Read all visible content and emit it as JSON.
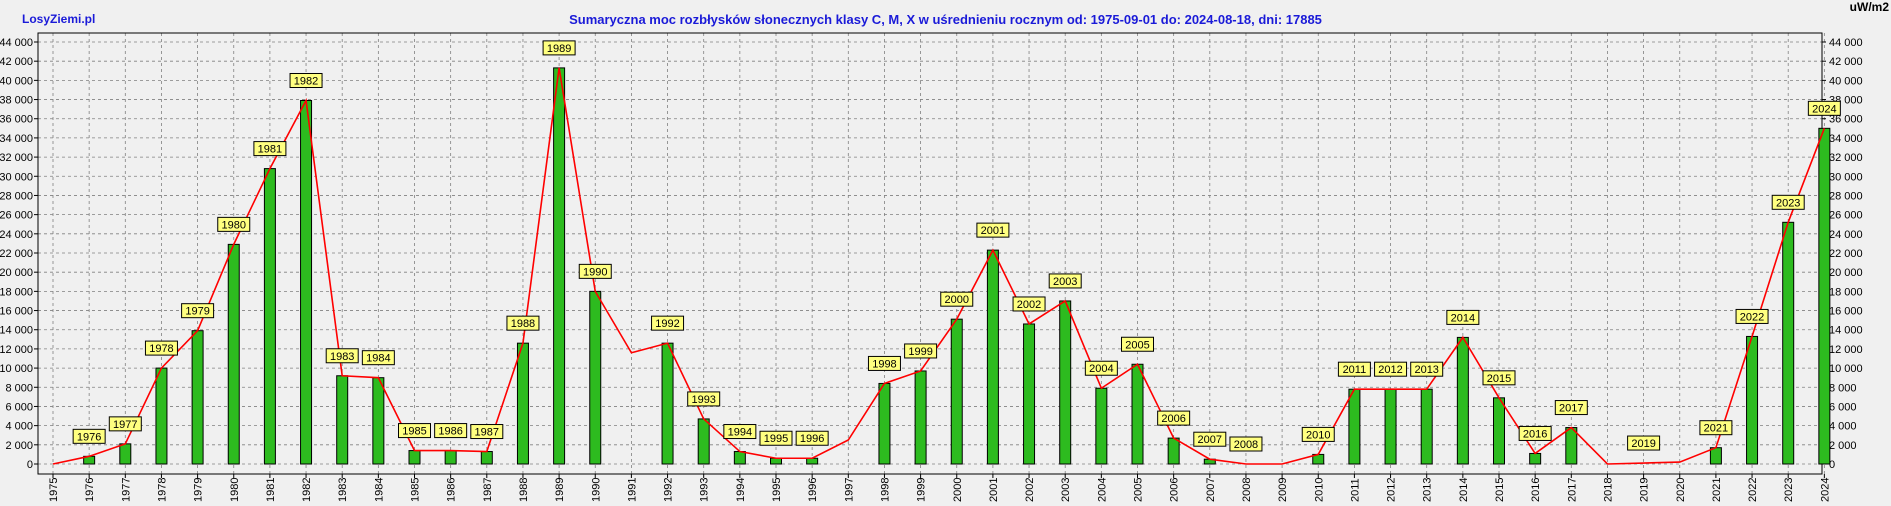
{
  "brand": "LosyZiemi.pl",
  "title": "Sumaryczna moc rozbłysków słonecznych klasy C, M, X w uśrednieniu rocznym od: 1975-09-01 do: 2024-08-18, dni: 17885",
  "unit_label": "uW/m2",
  "colors": {
    "background": "#f0f0f0",
    "bar_fill": "#2dbb1f",
    "bar_edge": "#000000",
    "line": "#ff0000",
    "label_bg": "#ffff80",
    "title": "#1a1ad8"
  },
  "chart_data": {
    "type": "bar",
    "categories": [
      "1975",
      "1976",
      "1977",
      "1978",
      "1979",
      "1980",
      "1981",
      "1982",
      "1983",
      "1984",
      "1985",
      "1986",
      "1987",
      "1988",
      "1989",
      "1990",
      "1991",
      "1992",
      "1993",
      "1994",
      "1995",
      "1996",
      "1997",
      "1998",
      "1999",
      "2000",
      "2001",
      "2002",
      "2003",
      "2004",
      "2005",
      "2006",
      "2007",
      "2008",
      "2009",
      "2010",
      "2011",
      "2012",
      "2013",
      "2014",
      "2015",
      "2016",
      "2017",
      "2018",
      "2019",
      "2020",
      "2021",
      "2022",
      "2023",
      "2024"
    ],
    "values": [
      0,
      800,
      2100,
      10000,
      13900,
      22900,
      30800,
      37900,
      9200,
      9000,
      1400,
      1400,
      1300,
      12600,
      41300,
      18000,
      0,
      12600,
      4700,
      1300,
      600,
      600,
      0,
      8400,
      9700,
      15100,
      22300,
      14600,
      17000,
      7900,
      10400,
      2700,
      500,
      0,
      0,
      1000,
      7800,
      7800,
      7800,
      13200,
      6900,
      1100,
      3800,
      0,
      0,
      0,
      1700,
      13300,
      25200,
      35000
    ],
    "line_values": [
      0,
      800,
      2100,
      10000,
      13900,
      22900,
      30800,
      37900,
      9200,
      9000,
      1400,
      1400,
      1300,
      12600,
      41300,
      18000,
      11600,
      12600,
      4700,
      1300,
      600,
      600,
      2500,
      8400,
      9700,
      15100,
      22300,
      14600,
      17000,
      7900,
      10400,
      2700,
      500,
      0,
      0,
      1000,
      7800,
      7800,
      7800,
      13200,
      6900,
      1100,
      3800,
      0,
      100,
      200,
      1700,
      13300,
      25200,
      35000
    ],
    "labeled_years": [
      "1976",
      "1977",
      "1978",
      "1979",
      "1980",
      "1981",
      "1982",
      "1983",
      "1984",
      "1985",
      "1986",
      "1987",
      "1988",
      "1989",
      "1990",
      "1992",
      "1993",
      "1994",
      "1995",
      "1996",
      "1998",
      "1999",
      "2000",
      "2001",
      "2002",
      "2003",
      "2004",
      "2005",
      "2006",
      "2007",
      "2008",
      "2010",
      "2011",
      "2012",
      "2013",
      "2014",
      "2015",
      "2016",
      "2017",
      "2019",
      "2021",
      "2022",
      "2023",
      "2024"
    ],
    "ylim": [
      0,
      45000
    ],
    "yticks": [
      "0",
      "2 000",
      "4 000",
      "6 000",
      "8 000",
      "10 000",
      "12 000",
      "14 000",
      "16 000",
      "18 000",
      "20 000",
      "22 000",
      "24 000",
      "26 000",
      "28 000",
      "30 000",
      "32 000",
      "34 000",
      "36 000",
      "38 000",
      "40 000",
      "42 000",
      "44 000"
    ],
    "grid": true,
    "legend": "none"
  }
}
